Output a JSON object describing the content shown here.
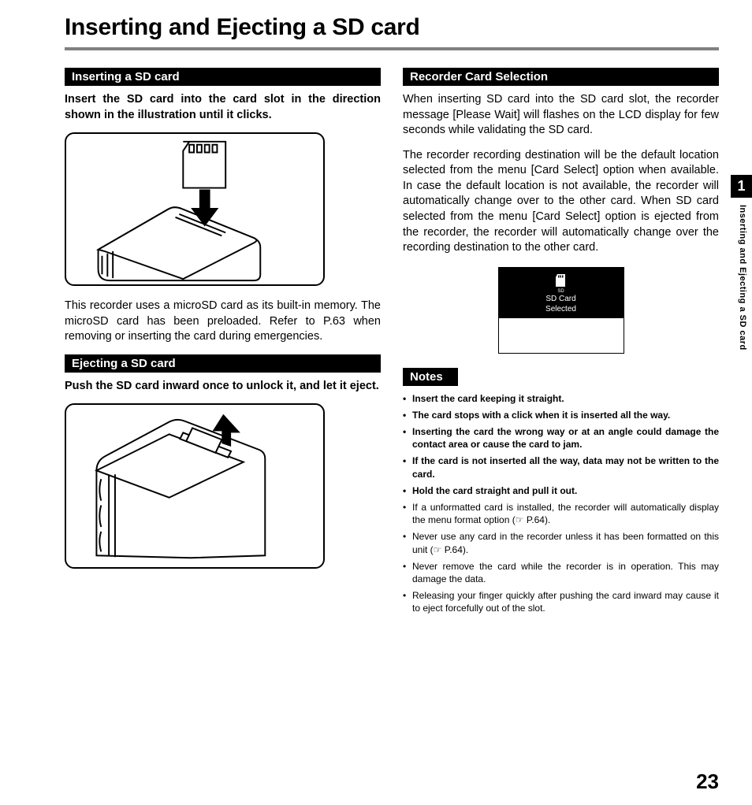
{
  "page": {
    "title": "Inserting and Ejecting a SD card",
    "number": "23",
    "chapter_tab": "1",
    "side_label": "Inserting and Ejecting a SD card"
  },
  "left": {
    "sec1_heading": "Inserting a SD card",
    "sec1_instruction": "Insert the SD card into the card slot in the direction shown in the illustration until it clicks.",
    "sec1_body": "This recorder uses a microSD card as its built-in memory. The microSD card has been preloaded. Refer to P.63 when removing or inserting the card during emergencies.",
    "sec2_heading": "Ejecting a SD card",
    "sec2_instruction": "Push the SD card inward once to unlock it, and let it eject."
  },
  "right": {
    "sec3_heading": "Recorder Card Selection",
    "sec3_p1": "When inserting SD card into the SD card slot, the recorder message [Please Wait] will flashes on the LCD display for few seconds while validating the SD card.",
    "sec3_p2": "The recorder recording destination will be the default location selected from the menu [Card Select] option when available. In case the default location is not available, the recorder will automatically change over to the other card. When SD card selected from the menu [Card Select] option is ejected from the recorder, the recorder will automatically change over the recording destination to the other card.",
    "lcd": {
      "line1": "SD Card",
      "line2": "Selected",
      "icon_label": "SD"
    },
    "notes_heading": "Notes",
    "notes": [
      {
        "b": true,
        "t": "Insert the card keeping it straight."
      },
      {
        "b": true,
        "t": "The card stops with a click when it is inserted all the way."
      },
      {
        "b": true,
        "t": "Inserting the card the wrong way or at an angle could damage the contact area or cause the card to jam."
      },
      {
        "b": true,
        "t": "If the card is not inserted all the way, data may not be written to the card."
      },
      {
        "b": true,
        "t": "Hold the card straight and pull it out."
      },
      {
        "b": false,
        "t": "If a unformatted card is installed, the recorder will automatically display the menu format option (☞ P.64)."
      },
      {
        "b": false,
        "t": "Never use any card in the recorder unless it has been formatted on this unit (☞ P.64)."
      },
      {
        "b": false,
        "t": "Never remove the card while the recorder is in operation. This may damage the data."
      },
      {
        "b": false,
        "t": "Releasing your finger quickly after pushing the card inward may cause it to eject forcefully out of the slot."
      }
    ]
  },
  "colors": {
    "rule": "#808080",
    "ink": "#000000",
    "paper": "#ffffff"
  }
}
